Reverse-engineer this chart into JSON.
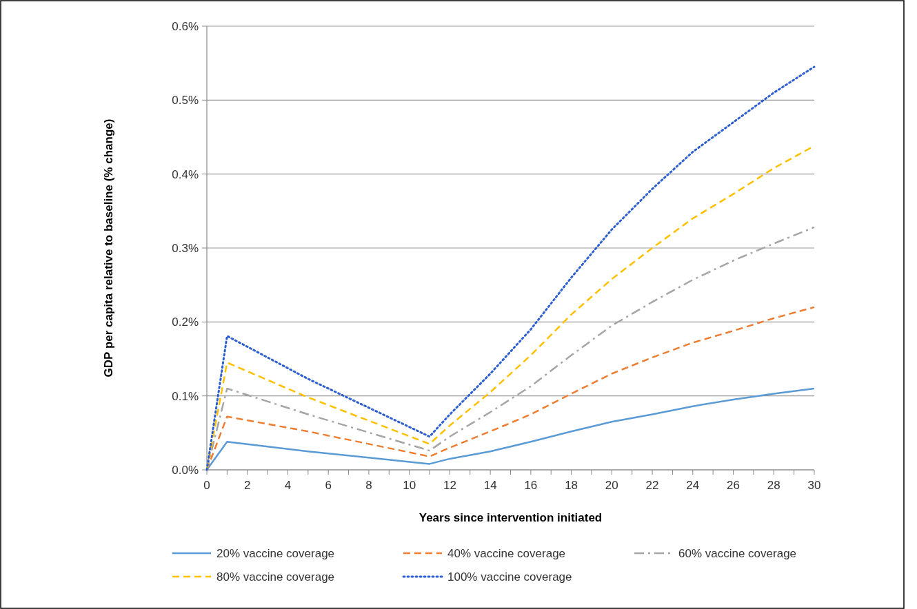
{
  "chart_data": {
    "type": "line",
    "xlabel": "Years since intervention initiated",
    "ylabel": "GDP per capita relative to baseline (% change)",
    "xlim": [
      0,
      30
    ],
    "ylim": [
      0,
      0.6
    ],
    "xticks": [
      0,
      {
        "value": 1,
        "label": null
      },
      2,
      {
        "value": 3,
        "label": null
      },
      4,
      {
        "value": 5,
        "label": null
      },
      6,
      {
        "value": 7,
        "label": null
      },
      8,
      {
        "value": 9,
        "label": null
      },
      10,
      {
        "value": 11,
        "label": null
      },
      12,
      {
        "value": 13,
        "label": null
      },
      14,
      {
        "value": 15,
        "label": null
      },
      16,
      {
        "value": 17,
        "label": null
      },
      18,
      {
        "value": 19,
        "label": null
      },
      20,
      {
        "value": 21,
        "label": null
      },
      22,
      {
        "value": 23,
        "label": null
      },
      24,
      {
        "value": 25,
        "label": null
      },
      26,
      {
        "value": 27,
        "label": null
      },
      28,
      {
        "value": 29,
        "label": null
      },
      30
    ],
    "yticks": [
      {
        "value": 0,
        "label": "0.0%"
      },
      {
        "value": 0.1,
        "label": "0.1%"
      },
      {
        "value": 0.2,
        "label": "0.2%"
      },
      {
        "value": 0.3,
        "label": "0.3%"
      },
      {
        "value": 0.4,
        "label": "0.4%"
      },
      {
        "value": 0.5,
        "label": "0.5%"
      },
      {
        "value": 0.6,
        "label": "0.6%"
      }
    ],
    "grid": "y",
    "legend": "bottom",
    "marker": "none",
    "x": [
      0,
      1,
      5,
      11,
      12,
      14,
      16,
      18,
      20,
      22,
      24,
      26,
      28,
      30
    ],
    "series": [
      {
        "name": "20% vaccine coverage",
        "color": "#5b9bd5",
        "line_style": "solid",
        "values": [
          0,
          0.038,
          0.025,
          0.008,
          0.015,
          0.025,
          0.038,
          0.052,
          0.065,
          0.075,
          0.086,
          0.095,
          0.103,
          0.11
        ]
      },
      {
        "name": "40% vaccine coverage",
        "color": "#ed7d31",
        "line_style": "dashed",
        "values": [
          0,
          0.072,
          0.052,
          0.018,
          0.03,
          0.052,
          0.075,
          0.103,
          0.13,
          0.152,
          0.172,
          0.188,
          0.205,
          0.22
        ]
      },
      {
        "name": "60% vaccine coverage",
        "color": "#a5a5a5",
        "line_style": "dashdot",
        "values": [
          0,
          0.11,
          0.075,
          0.026,
          0.045,
          0.078,
          0.113,
          0.155,
          0.195,
          0.227,
          0.257,
          0.283,
          0.306,
          0.328
        ]
      },
      {
        "name": "80% vaccine coverage",
        "color": "#ffc000",
        "line_style": "dashed",
        "values": [
          0,
          0.145,
          0.098,
          0.035,
          0.06,
          0.105,
          0.155,
          0.21,
          0.258,
          0.3,
          0.34,
          0.373,
          0.408,
          0.438
        ]
      },
      {
        "name": "100% vaccine coverage",
        "color": "#2e5fd0",
        "line_style": "dotted",
        "values": [
          0,
          0.181,
          0.123,
          0.045,
          0.075,
          0.13,
          0.19,
          0.26,
          0.325,
          0.38,
          0.43,
          0.47,
          0.51,
          0.545
        ]
      }
    ]
  }
}
